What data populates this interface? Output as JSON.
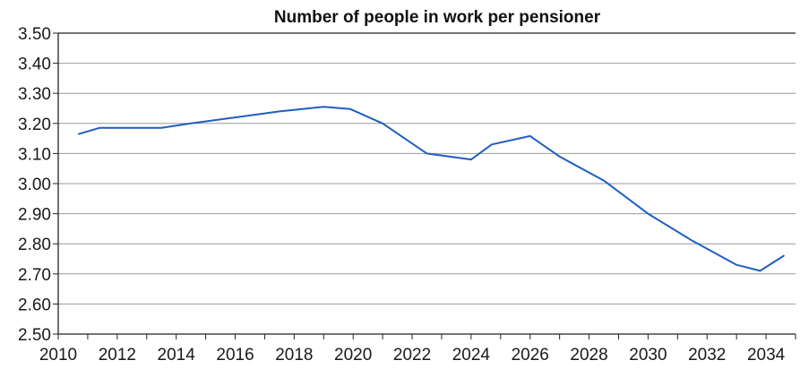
{
  "chart_data": {
    "type": "line",
    "title": "Number of people in work per pensioner",
    "xlabel": "",
    "ylabel": "",
    "x_ticks": [
      "2010",
      "2012",
      "2014",
      "2016",
      "2018",
      "2020",
      "2022",
      "2024",
      "2026",
      "2028",
      "2030",
      "2032",
      "2034"
    ],
    "y_ticks": [
      "2.50",
      "2.60",
      "2.70",
      "2.80",
      "2.90",
      "3.00",
      "3.10",
      "3.20",
      "3.30",
      "3.40",
      "3.50"
    ],
    "xlim": [
      2010,
      2035
    ],
    "ylim": [
      2.5,
      3.5
    ],
    "grid": "horizontal",
    "series": [
      {
        "color": "#1f5fbf",
        "x": [
          2010.7,
          2011.4,
          2012.5,
          2013.5,
          2014.5,
          2016.0,
          2017.5,
          2019.0,
          2019.9,
          2021.0,
          2022.5,
          2024.0,
          2024.7,
          2026.0,
          2027.0,
          2028.5,
          2030.0,
          2031.5,
          2033.0,
          2033.8,
          2034.6
        ],
        "y": [
          3.165,
          3.185,
          3.185,
          3.185,
          3.2,
          3.22,
          3.24,
          3.255,
          3.248,
          3.2,
          3.1,
          3.08,
          3.13,
          3.158,
          3.09,
          3.01,
          2.9,
          2.81,
          2.73,
          2.71,
          2.76
        ]
      }
    ]
  }
}
